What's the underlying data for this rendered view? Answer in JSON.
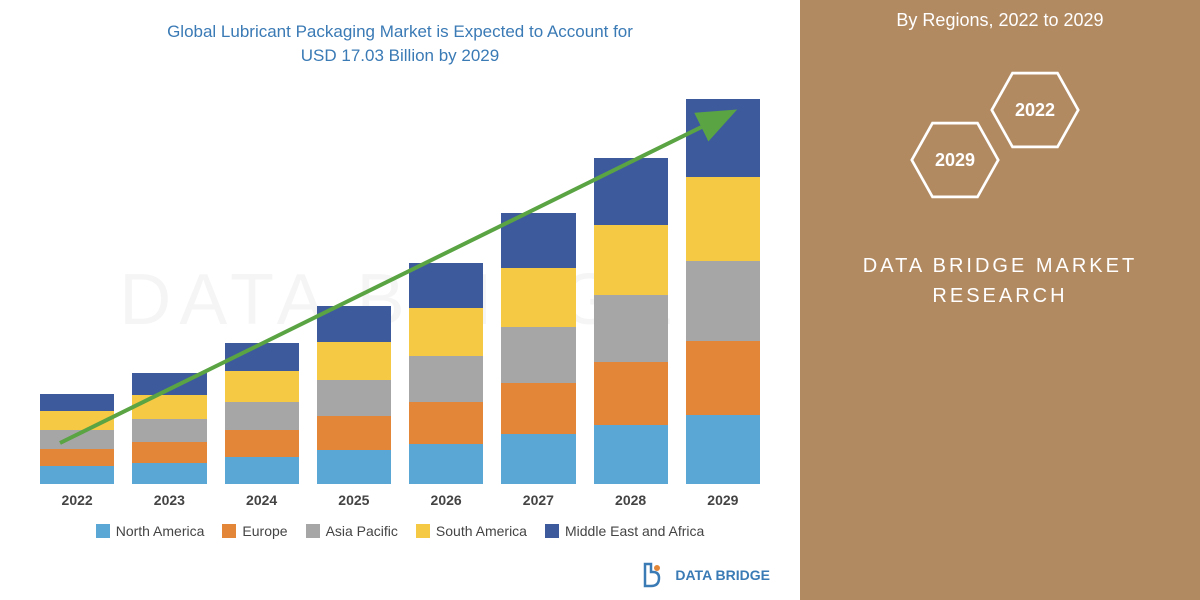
{
  "chart": {
    "title_line1": "Global Lubricant Packaging Market is Expected to Account for",
    "title_line2": "USD 17.03 Billion by 2029",
    "type": "stacked-bar",
    "categories": [
      "2022",
      "2023",
      "2024",
      "2025",
      "2026",
      "2027",
      "2028",
      "2029"
    ],
    "series": [
      {
        "name": "North America",
        "color": "#5aa7d6",
        "values": [
          18,
          22,
          28,
          35,
          42,
          52,
          62,
          72
        ]
      },
      {
        "name": "Europe",
        "color": "#e38637",
        "values": [
          18,
          22,
          28,
          36,
          44,
          54,
          66,
          78
        ]
      },
      {
        "name": "Asia Pacific",
        "color": "#a6a6a6",
        "values": [
          20,
          24,
          30,
          38,
          48,
          58,
          70,
          84
        ]
      },
      {
        "name": "South America",
        "color": "#f5c944",
        "values": [
          20,
          25,
          32,
          40,
          50,
          62,
          74,
          88
        ]
      },
      {
        "name": "Middle East and Africa",
        "color": "#3d5a9c",
        "values": [
          18,
          23,
          30,
          38,
          48,
          58,
          70,
          82
        ]
      }
    ],
    "max_total": 420,
    "arrow_color": "#5aa443",
    "title_color": "#3a7ab5",
    "label_fontsize": 14,
    "background": "#ffffff",
    "watermark_text": "DATA BRIDGE"
  },
  "side": {
    "title": "By Regions, 2022 to 2029",
    "background": "#b28a62",
    "hex_stroke": "#ffffff",
    "hex1_label": "2029",
    "hex2_label": "2022",
    "brand_line1": "DATA BRIDGE MARKET",
    "brand_line2": "RESEARCH"
  },
  "footer": {
    "logo_text": "DATA BRIDGE",
    "logo_color": "#3a7ab5",
    "icon_accent": "#e38637"
  }
}
